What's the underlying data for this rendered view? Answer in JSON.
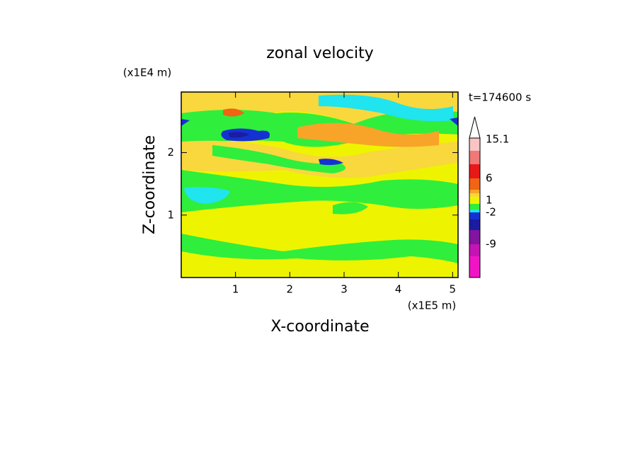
{
  "chart_data": {
    "type": "contour",
    "title": "zonal velocity",
    "xlabel": "X-coordinate",
    "ylabel": "Z-coordinate",
    "x_unit": "(x1E5 m)",
    "y_unit": "(x1E4 m)",
    "annotation": "t=174600 s",
    "xlim": [
      0,
      5.1
    ],
    "xticks": [
      1,
      2,
      3,
      4,
      5
    ],
    "ylim": [
      0,
      2.97
    ],
    "yticks": [
      1,
      2
    ],
    "colorbar": {
      "colors": [
        "#f8c4c4",
        "#f07878",
        "#e81818",
        "#f06414",
        "#f8a428",
        "#f8d83c",
        "#eef400",
        "#30ee3c",
        "#20e4ee",
        "#1432d2",
        "#1c1ca0",
        "#8214a0",
        "#c414b4",
        "#f014c4"
      ],
      "ticks": [
        15.1,
        6,
        1,
        -2,
        -9
      ]
    }
  }
}
